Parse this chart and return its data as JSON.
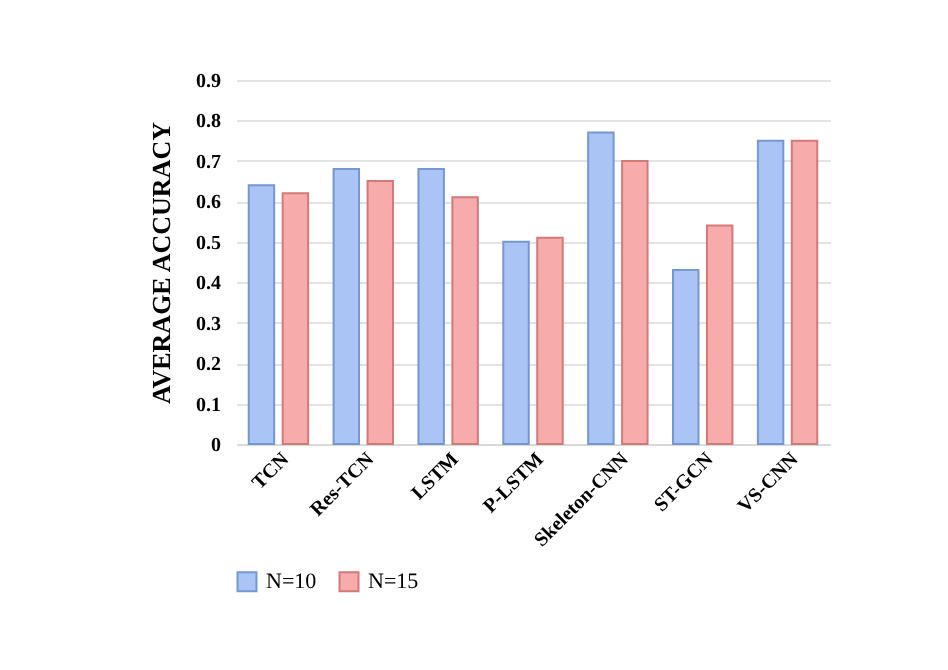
{
  "chart_data": {
    "type": "bar",
    "ylabel": "AVERAGE ACCURACY",
    "categories": [
      "TCN",
      "Res-TCN",
      "LSTM",
      "P-LSTM",
      "Skeleton-CNN",
      "ST-GCN",
      "VS-CNN"
    ],
    "series": [
      {
        "name": "N=10",
        "color": "#a9c4f5",
        "values": [
          0.64,
          0.68,
          0.68,
          0.5,
          0.77,
          0.43,
          0.75
        ]
      },
      {
        "name": "N=15",
        "color": "#f7abab",
        "values": [
          0.62,
          0.65,
          0.61,
          0.51,
          0.7,
          0.54,
          0.75
        ]
      }
    ],
    "ylim": [
      0,
      0.9
    ],
    "yticks": [
      0,
      0.1,
      0.2,
      0.3,
      0.4,
      0.5,
      0.6,
      0.7,
      0.8,
      0.9
    ],
    "grid": "y",
    "legend": "bottom"
  }
}
